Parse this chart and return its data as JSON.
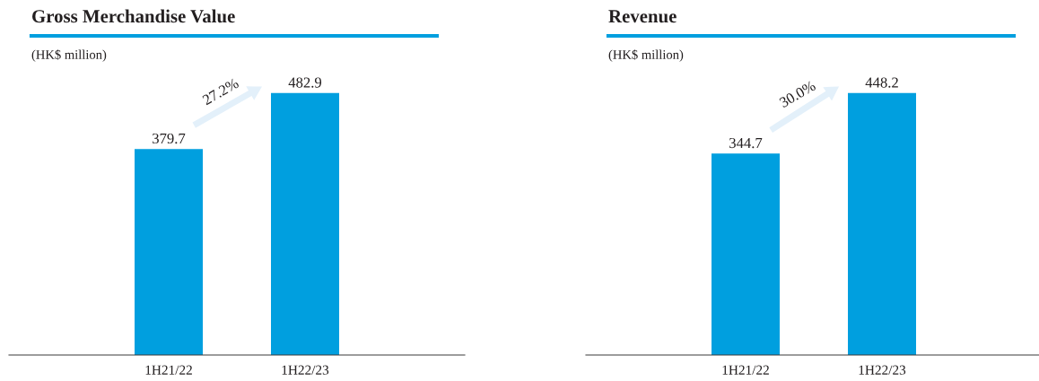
{
  "chart_data": [
    {
      "type": "bar",
      "title": "Gross Merchandise Value",
      "subtitle": "(HK$ million)",
      "categories": [
        "1H21/22",
        "1H22/23"
      ],
      "values": [
        379.7,
        482.9
      ],
      "color": "#009fdf",
      "data_labels": true,
      "annotations": [
        "27.2%"
      ]
    },
    {
      "type": "bar",
      "title": "Revenue",
      "subtitle": "(HK$ million)",
      "categories": [
        "1H21/22",
        "1H22/23"
      ],
      "values": [
        344.7,
        448.2
      ],
      "color": "#009fdf",
      "data_labels": true,
      "annotations": [
        "30.0%"
      ]
    }
  ]
}
